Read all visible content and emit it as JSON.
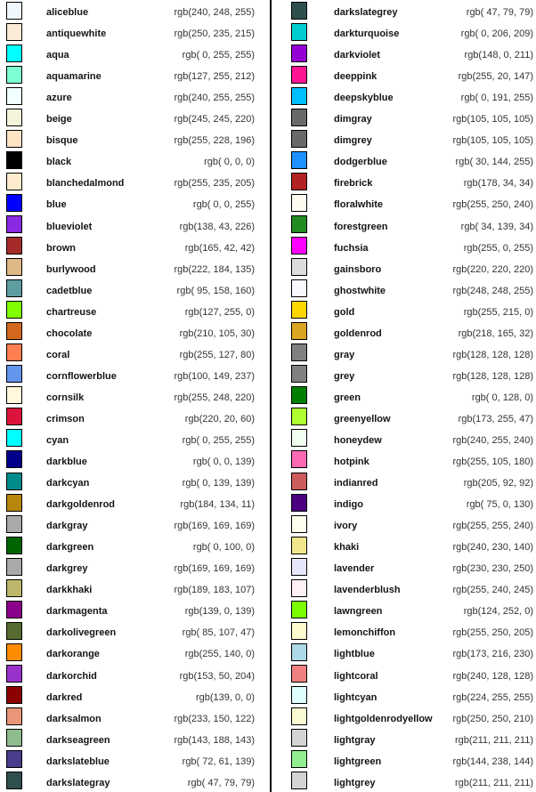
{
  "page": {
    "background": "#ffffff",
    "divider_color": "#000000",
    "name_text_color": "#141414",
    "rgb_text_color": "#333333",
    "swatch_border_color": "#000000"
  },
  "chart_data": {
    "type": "table",
    "layout": {
      "columns_count": 2,
      "rows_per_column": 37,
      "row_fields": [
        "swatch",
        "name",
        "rgb_label"
      ]
    },
    "columns": [
      {
        "rows": [
          {
            "name": "aliceblue",
            "rgb": [
              240,
              248,
              255
            ],
            "rgb_label": "rgb(240, 248, 255)",
            "hex": "#f0f8ff"
          },
          {
            "name": "antiquewhite",
            "rgb": [
              250,
              235,
              215
            ],
            "rgb_label": "rgb(250, 235, 215)",
            "hex": "#faebd7"
          },
          {
            "name": "aqua",
            "rgb": [
              0,
              255,
              255
            ],
            "rgb_label": "rgb( 0, 255, 255)",
            "hex": "#00ffff"
          },
          {
            "name": "aquamarine",
            "rgb": [
              127,
              255,
              212
            ],
            "rgb_label": "rgb(127, 255, 212)",
            "hex": "#7fffd4"
          },
          {
            "name": "azure",
            "rgb": [
              240,
              255,
              255
            ],
            "rgb_label": "rgb(240, 255, 255)",
            "hex": "#f0ffff"
          },
          {
            "name": "beige",
            "rgb": [
              245,
              245,
              220
            ],
            "rgb_label": "rgb(245, 245, 220)",
            "hex": "#f5f5dc"
          },
          {
            "name": "bisque",
            "rgb": [
              255,
              228,
              196
            ],
            "rgb_label": "rgb(255, 228, 196)",
            "hex": "#ffe4c4"
          },
          {
            "name": "black",
            "rgb": [
              0,
              0,
              0
            ],
            "rgb_label": "rgb( 0, 0, 0)",
            "hex": "#000000"
          },
          {
            "name": "blanchedalmond",
            "rgb": [
              255,
              235,
              205
            ],
            "rgb_label": "rgb(255, 235, 205)",
            "hex": "#ffebcd"
          },
          {
            "name": "blue",
            "rgb": [
              0,
              0,
              255
            ],
            "rgb_label": "rgb( 0, 0, 255)",
            "hex": "#0000ff"
          },
          {
            "name": "blueviolet",
            "rgb": [
              138,
              43,
              226
            ],
            "rgb_label": "rgb(138, 43, 226)",
            "hex": "#8a2be2"
          },
          {
            "name": "brown",
            "rgb": [
              165,
              42,
              42
            ],
            "rgb_label": "rgb(165, 42, 42)",
            "hex": "#a52a2a"
          },
          {
            "name": "burlywood",
            "rgb": [
              222,
              184,
              135
            ],
            "rgb_label": "rgb(222, 184, 135)",
            "hex": "#deb887"
          },
          {
            "name": "cadetblue",
            "rgb": [
              95,
              158,
              160
            ],
            "rgb_label": "rgb( 95, 158, 160)",
            "hex": "#5f9ea0"
          },
          {
            "name": "chartreuse",
            "rgb": [
              127,
              255,
              0
            ],
            "rgb_label": "rgb(127, 255, 0)",
            "hex": "#7fff00"
          },
          {
            "name": "chocolate",
            "rgb": [
              210,
              105,
              30
            ],
            "rgb_label": "rgb(210, 105, 30)",
            "hex": "#d2691e"
          },
          {
            "name": "coral",
            "rgb": [
              255,
              127,
              80
            ],
            "rgb_label": "rgb(255, 127, 80)",
            "hex": "#ff7f50"
          },
          {
            "name": "cornflowerblue",
            "rgb": [
              100,
              149,
              237
            ],
            "rgb_label": "rgb(100, 149, 237)",
            "hex": "#6495ed"
          },
          {
            "name": "cornsilk",
            "rgb": [
              255,
              248,
              220
            ],
            "rgb_label": "rgb(255, 248, 220)",
            "hex": "#fff8dc"
          },
          {
            "name": "crimson",
            "rgb": [
              220,
              20,
              60
            ],
            "rgb_label": "rgb(220, 20, 60)",
            "hex": "#dc143c"
          },
          {
            "name": "cyan",
            "rgb": [
              0,
              255,
              255
            ],
            "rgb_label": "rgb( 0, 255, 255)",
            "hex": "#00ffff"
          },
          {
            "name": "darkblue",
            "rgb": [
              0,
              0,
              139
            ],
            "rgb_label": "rgb( 0, 0, 139)",
            "hex": "#00008b"
          },
          {
            "name": "darkcyan",
            "rgb": [
              0,
              139,
              139
            ],
            "rgb_label": "rgb( 0, 139, 139)",
            "hex": "#008b8b"
          },
          {
            "name": "darkgoldenrod",
            "rgb": [
              184,
              134,
              11
            ],
            "rgb_label": "rgb(184, 134, 11)",
            "hex": "#b8860b"
          },
          {
            "name": "darkgray",
            "rgb": [
              169,
              169,
              169
            ],
            "rgb_label": "rgb(169, 169, 169)",
            "hex": "#a9a9a9"
          },
          {
            "name": "darkgreen",
            "rgb": [
              0,
              100,
              0
            ],
            "rgb_label": "rgb( 0, 100, 0)",
            "hex": "#006400"
          },
          {
            "name": "darkgrey",
            "rgb": [
              169,
              169,
              169
            ],
            "rgb_label": "rgb(169, 169, 169)",
            "hex": "#a9a9a9"
          },
          {
            "name": "darkkhaki",
            "rgb": [
              189,
              183,
              107
            ],
            "rgb_label": "rgb(189, 183, 107)",
            "hex": "#bdb76b"
          },
          {
            "name": "darkmagenta",
            "rgb": [
              139,
              0,
              139
            ],
            "rgb_label": "rgb(139, 0, 139)",
            "hex": "#8b008b"
          },
          {
            "name": "darkolivegreen",
            "rgb": [
              85,
              107,
              47
            ],
            "rgb_label": "rgb( 85, 107, 47)",
            "hex": "#556b2f"
          },
          {
            "name": "darkorange",
            "rgb": [
              255,
              140,
              0
            ],
            "rgb_label": "rgb(255, 140, 0)",
            "hex": "#ff8c00"
          },
          {
            "name": "darkorchid",
            "rgb": [
              153,
              50,
              204
            ],
            "rgb_label": "rgb(153, 50, 204)",
            "hex": "#9932cc"
          },
          {
            "name": "darkred",
            "rgb": [
              139,
              0,
              0
            ],
            "rgb_label": "rgb(139, 0, 0)",
            "hex": "#8b0000"
          },
          {
            "name": "darksalmon",
            "rgb": [
              233,
              150,
              122
            ],
            "rgb_label": "rgb(233, 150, 122)",
            "hex": "#e9967a"
          },
          {
            "name": "darkseagreen",
            "rgb": [
              143,
              188,
              143
            ],
            "rgb_label": "rgb(143, 188, 143)",
            "hex": "#8fbc8f"
          },
          {
            "name": "darkslateblue",
            "rgb": [
              72,
              61,
              139
            ],
            "rgb_label": "rgb( 72, 61, 139)",
            "hex": "#483d8b"
          },
          {
            "name": "darkslategray",
            "rgb": [
              47,
              79,
              79
            ],
            "rgb_label": "rgb( 47, 79, 79)",
            "hex": "#2f4f4f"
          }
        ]
      },
      {
        "rows": [
          {
            "name": "darkslategrey",
            "rgb": [
              47,
              79,
              79
            ],
            "rgb_label": "rgb( 47, 79, 79)",
            "hex": "#2f4f4f"
          },
          {
            "name": "darkturquoise",
            "rgb": [
              0,
              206,
              209
            ],
            "rgb_label": "rgb( 0, 206, 209)",
            "hex": "#00ced1"
          },
          {
            "name": "darkviolet",
            "rgb": [
              148,
              0,
              211
            ],
            "rgb_label": "rgb(148, 0, 211)",
            "hex": "#9400d3"
          },
          {
            "name": "deeppink",
            "rgb": [
              255,
              20,
              147
            ],
            "rgb_label": "rgb(255, 20, 147)",
            "hex": "#ff1493"
          },
          {
            "name": "deepskyblue",
            "rgb": [
              0,
              191,
              255
            ],
            "rgb_label": "rgb( 0, 191, 255)",
            "hex": "#00bfff"
          },
          {
            "name": "dimgray",
            "rgb": [
              105,
              105,
              105
            ],
            "rgb_label": "rgb(105, 105, 105)",
            "hex": "#696969"
          },
          {
            "name": "dimgrey",
            "rgb": [
              105,
              105,
              105
            ],
            "rgb_label": "rgb(105, 105, 105)",
            "hex": "#696969"
          },
          {
            "name": "dodgerblue",
            "rgb": [
              30,
              144,
              255
            ],
            "rgb_label": "rgb( 30, 144, 255)",
            "hex": "#1e90ff"
          },
          {
            "name": "firebrick",
            "rgb": [
              178,
              34,
              34
            ],
            "rgb_label": "rgb(178, 34, 34)",
            "hex": "#b22222"
          },
          {
            "name": "floralwhite",
            "rgb": [
              255,
              250,
              240
            ],
            "rgb_label": "rgb(255, 250, 240)",
            "hex": "#fffaf0"
          },
          {
            "name": "forestgreen",
            "rgb": [
              34,
              139,
              34
            ],
            "rgb_label": "rgb( 34, 139, 34)",
            "hex": "#228b22"
          },
          {
            "name": "fuchsia",
            "rgb": [
              255,
              0,
              255
            ],
            "rgb_label": "rgb(255, 0, 255)",
            "hex": "#ff00ff"
          },
          {
            "name": "gainsboro",
            "rgb": [
              220,
              220,
              220
            ],
            "rgb_label": "rgb(220, 220, 220)",
            "hex": "#dcdcdc"
          },
          {
            "name": "ghostwhite",
            "rgb": [
              248,
              248,
              255
            ],
            "rgb_label": "rgb(248, 248, 255)",
            "hex": "#f8f8ff"
          },
          {
            "name": "gold",
            "rgb": [
              255,
              215,
              0
            ],
            "rgb_label": "rgb(255, 215, 0)",
            "hex": "#ffd700"
          },
          {
            "name": "goldenrod",
            "rgb": [
              218,
              165,
              32
            ],
            "rgb_label": "rgb(218, 165, 32)",
            "hex": "#daa520"
          },
          {
            "name": "gray",
            "rgb": [
              128,
              128,
              128
            ],
            "rgb_label": "rgb(128, 128, 128)",
            "hex": "#808080"
          },
          {
            "name": "grey",
            "rgb": [
              128,
              128,
              128
            ],
            "rgb_label": "rgb(128, 128, 128)",
            "hex": "#808080"
          },
          {
            "name": "green",
            "rgb": [
              0,
              128,
              0
            ],
            "rgb_label": "rgb( 0, 128, 0)",
            "hex": "#008000"
          },
          {
            "name": "greenyellow",
            "rgb": [
              173,
              255,
              47
            ],
            "rgb_label": "rgb(173, 255, 47)",
            "hex": "#adff2f"
          },
          {
            "name": "honeydew",
            "rgb": [
              240,
              255,
              240
            ],
            "rgb_label": "rgb(240, 255, 240)",
            "hex": "#f0fff0"
          },
          {
            "name": "hotpink",
            "rgb": [
              255,
              105,
              180
            ],
            "rgb_label": "rgb(255, 105, 180)",
            "hex": "#ff69b4"
          },
          {
            "name": "indianred",
            "rgb": [
              205,
              92,
              92
            ],
            "rgb_label": "rgb(205, 92, 92)",
            "hex": "#cd5c5c"
          },
          {
            "name": "indigo",
            "rgb": [
              75,
              0,
              130
            ],
            "rgb_label": "rgb( 75, 0, 130)",
            "hex": "#4b0082"
          },
          {
            "name": "ivory",
            "rgb": [
              255,
              255,
              240
            ],
            "rgb_label": "rgb(255, 255, 240)",
            "hex": "#fffff0"
          },
          {
            "name": "khaki",
            "rgb": [
              240,
              230,
              140
            ],
            "rgb_label": "rgb(240, 230, 140)",
            "hex": "#f0e68c"
          },
          {
            "name": "lavender",
            "rgb": [
              230,
              230,
              250
            ],
            "rgb_label": "rgb(230, 230, 250)",
            "hex": "#e6e6fa"
          },
          {
            "name": "lavenderblush",
            "rgb": [
              255,
              240,
              245
            ],
            "rgb_label": "rgb(255, 240, 245)",
            "hex": "#fff0f5"
          },
          {
            "name": "lawngreen",
            "rgb": [
              124,
              252,
              0
            ],
            "rgb_label": "rgb(124, 252, 0)",
            "hex": "#7cfc00"
          },
          {
            "name": "lemonchiffon",
            "rgb": [
              255,
              250,
              205
            ],
            "rgb_label": "rgb(255, 250, 205)",
            "hex": "#fffacd"
          },
          {
            "name": "lightblue",
            "rgb": [
              173,
              216,
              230
            ],
            "rgb_label": "rgb(173, 216, 230)",
            "hex": "#add8e6"
          },
          {
            "name": "lightcoral",
            "rgb": [
              240,
              128,
              128
            ],
            "rgb_label": "rgb(240, 128, 128)",
            "hex": "#f08080"
          },
          {
            "name": "lightcyan",
            "rgb": [
              224,
              255,
              255
            ],
            "rgb_label": "rgb(224, 255, 255)",
            "hex": "#e0ffff"
          },
          {
            "name": "lightgoldenrodyellow",
            "rgb": [
              250,
              250,
              210
            ],
            "rgb_label": "rgb(250, 250, 210)",
            "hex": "#fafad2"
          },
          {
            "name": "lightgray",
            "rgb": [
              211,
              211,
              211
            ],
            "rgb_label": "rgb(211, 211, 211)",
            "hex": "#d3d3d3"
          },
          {
            "name": "lightgreen",
            "rgb": [
              144,
              238,
              144
            ],
            "rgb_label": "rgb(144, 238, 144)",
            "hex": "#90ee90"
          },
          {
            "name": "lightgrey",
            "rgb": [
              211,
              211,
              211
            ],
            "rgb_label": "rgb(211, 211, 211)",
            "hex": "#d3d3d3"
          }
        ]
      }
    ]
  }
}
